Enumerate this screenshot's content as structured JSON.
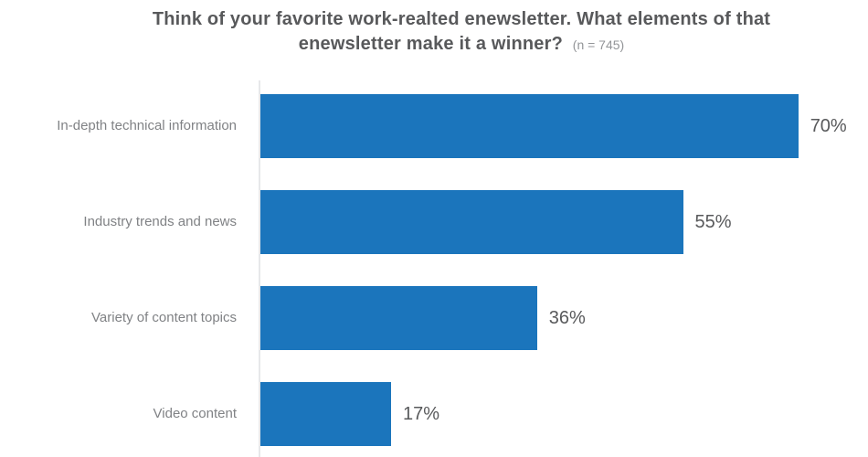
{
  "chart": {
    "title_line1": "Think of your favorite work-realted enewsletter. What elements of that",
    "title_line2": "enewsletter make it a winner?",
    "sample_note": "(n = 745)"
  },
  "chart_data": {
    "type": "bar",
    "orientation": "horizontal",
    "title": "Think of your favorite work-realted enewsletter. What elements of that enewsletter make it a winner? (n = 745)",
    "sample_size": 745,
    "categories": [
      "In-depth technical information",
      "Industry trends and news",
      "Variety of content topics",
      "Video content"
    ],
    "values": [
      70,
      55,
      36,
      17
    ],
    "value_labels": [
      "70%",
      "55%",
      "36%",
      "17%"
    ],
    "unit": "%",
    "xlim": [
      0,
      100
    ],
    "grid": false,
    "legend": false,
    "bar_color": "#1B75BC",
    "category_label_color": "#808285",
    "value_label_color": "#58595B",
    "title_color": "#58595B",
    "axis_line_color": "#E7E8EA",
    "background_color": "#FFFFFF"
  }
}
